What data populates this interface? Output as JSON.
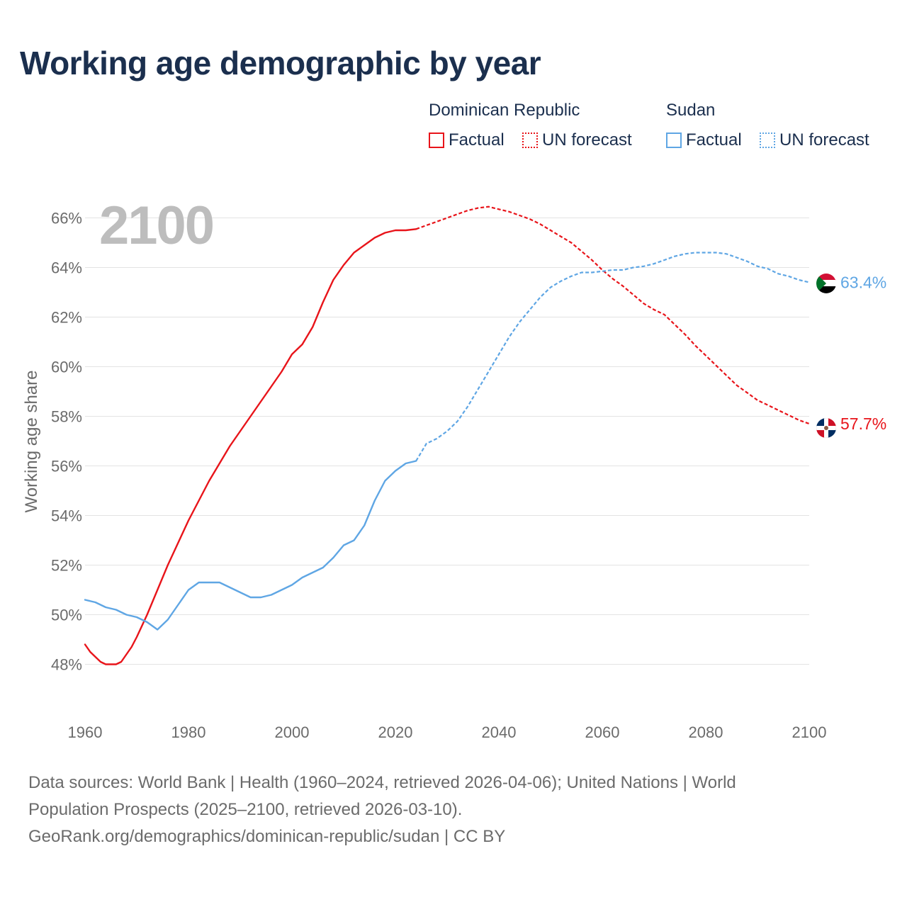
{
  "title": "Working age demographic by year",
  "legend": {
    "groups": [
      {
        "name": "Dominican Republic",
        "factual_label": "Factual",
        "forecast_label": "UN forecast",
        "color": "#e8141a"
      },
      {
        "name": "Sudan",
        "factual_label": "Factual",
        "forecast_label": "UN forecast",
        "color": "#5fa6e4"
      }
    ]
  },
  "year_watermark": "2100",
  "source": {
    "line1": "Data sources: World Bank | Health (1960–2024, retrieved 2026-04-06); United Nations | World",
    "line2": "Population Prospects (2025–2100, retrieved 2026-03-10).",
    "line3": "GeoRank.org/demographics/dominican-republic/sudan | CC BY"
  },
  "chart_data": {
    "type": "line",
    "title": "Working age demographic by year",
    "xlabel": "",
    "ylabel": "Working age share",
    "xlim": [
      1960,
      2100
    ],
    "ylim": [
      46.5,
      66.5
    ],
    "x_ticks": [
      1960,
      1980,
      2000,
      2020,
      2040,
      2060,
      2080,
      2100
    ],
    "x_tick_labels": [
      "1960",
      "1980",
      "2000",
      "2020",
      "2040",
      "2060",
      "2080",
      "2100"
    ],
    "y_ticks": [
      48,
      50,
      52,
      54,
      56,
      58,
      60,
      62,
      64,
      66
    ],
    "y_tick_labels": [
      "48%",
      "50%",
      "52%",
      "54%",
      "56%",
      "58%",
      "60%",
      "62%",
      "64%",
      "66%"
    ],
    "grid": true,
    "factual_end_year": 2024,
    "series": [
      {
        "name": "Dominican Republic",
        "color": "#e8141a",
        "end_label": "57.7%",
        "flag": "dominican-republic-flag",
        "x": [
          1960,
          1961,
          1962,
          1963,
          1964,
          1965,
          1966,
          1967,
          1968,
          1969,
          1970,
          1972,
          1974,
          1976,
          1978,
          1980,
          1982,
          1984,
          1986,
          1988,
          1990,
          1992,
          1994,
          1996,
          1998,
          2000,
          2002,
          2004,
          2006,
          2008,
          2010,
          2012,
          2014,
          2016,
          2018,
          2020,
          2022,
          2024,
          2026,
          2028,
          2030,
          2032,
          2034,
          2036,
          2038,
          2040,
          2042,
          2044,
          2046,
          2048,
          2050,
          2052,
          2054,
          2056,
          2058,
          2060,
          2062,
          2064,
          2066,
          2068,
          2070,
          2072,
          2074,
          2076,
          2078,
          2080,
          2082,
          2084,
          2086,
          2088,
          2090,
          2092,
          2094,
          2096,
          2098,
          2100
        ],
        "values": [
          48.8,
          48.5,
          48.3,
          48.1,
          48.0,
          48.0,
          48.0,
          48.1,
          48.4,
          48.7,
          49.1,
          50.0,
          51.0,
          52.0,
          52.9,
          53.8,
          54.6,
          55.4,
          56.1,
          56.8,
          57.4,
          58.0,
          58.6,
          59.2,
          59.8,
          60.5,
          60.9,
          61.6,
          62.6,
          63.5,
          64.1,
          64.6,
          64.9,
          65.2,
          65.4,
          65.5,
          65.5,
          65.55,
          65.7,
          65.85,
          66.0,
          66.15,
          66.3,
          66.4,
          66.45,
          66.35,
          66.25,
          66.1,
          65.95,
          65.75,
          65.5,
          65.25,
          65.0,
          64.65,
          64.3,
          63.9,
          63.55,
          63.25,
          62.9,
          62.55,
          62.3,
          62.1,
          61.7,
          61.3,
          60.85,
          60.45,
          60.05,
          59.65,
          59.25,
          58.95,
          58.65,
          58.45,
          58.25,
          58.05,
          57.85,
          57.7
        ]
      },
      {
        "name": "Sudan",
        "color": "#5fa6e4",
        "end_label": "63.4%",
        "flag": "sudan-flag",
        "x": [
          1960,
          1962,
          1964,
          1966,
          1968,
          1970,
          1972,
          1974,
          1976,
          1978,
          1980,
          1982,
          1984,
          1986,
          1988,
          1990,
          1992,
          1994,
          1996,
          1998,
          2000,
          2002,
          2004,
          2006,
          2008,
          2010,
          2012,
          2014,
          2016,
          2018,
          2020,
          2022,
          2024,
          2026,
          2028,
          2030,
          2032,
          2034,
          2036,
          2038,
          2040,
          2042,
          2044,
          2046,
          2048,
          2050,
          2052,
          2054,
          2056,
          2058,
          2060,
          2062,
          2064,
          2066,
          2068,
          2070,
          2072,
          2074,
          2076,
          2078,
          2080,
          2082,
          2084,
          2086,
          2088,
          2090,
          2092,
          2094,
          2096,
          2098,
          2100
        ],
        "values": [
          50.6,
          50.5,
          50.3,
          50.2,
          50.0,
          49.9,
          49.7,
          49.4,
          49.8,
          50.4,
          51.0,
          51.3,
          51.3,
          51.3,
          51.1,
          50.9,
          50.7,
          50.7,
          50.8,
          51.0,
          51.2,
          51.5,
          51.7,
          51.9,
          52.3,
          52.8,
          53.0,
          53.6,
          54.6,
          55.4,
          55.8,
          56.1,
          56.2,
          56.9,
          57.1,
          57.4,
          57.8,
          58.4,
          59.1,
          59.8,
          60.5,
          61.2,
          61.8,
          62.3,
          62.8,
          63.2,
          63.45,
          63.65,
          63.8,
          63.8,
          63.85,
          63.9,
          63.9,
          64.0,
          64.05,
          64.15,
          64.3,
          64.45,
          64.55,
          64.6,
          64.6,
          64.6,
          64.55,
          64.4,
          64.25,
          64.05,
          63.95,
          63.75,
          63.65,
          63.5,
          63.4
        ]
      }
    ]
  }
}
